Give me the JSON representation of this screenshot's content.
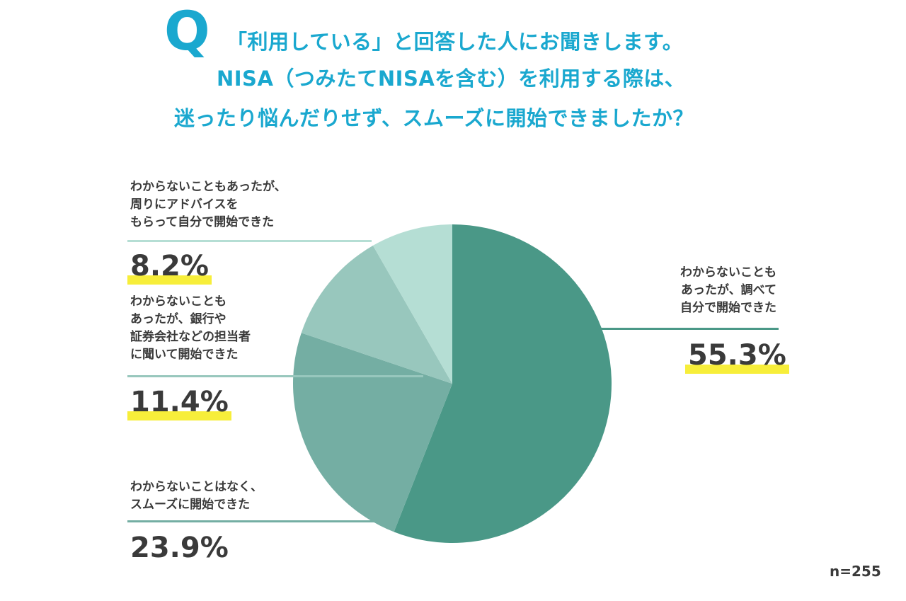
{
  "title": {
    "mark": "Q",
    "lines": [
      "「利用している」と回答した人にお聞きします。",
      "NISA（つみたてNISAを含む）を利用する際は、",
      "迷ったり悩んだりせず、スムーズに開始できましたか？"
    ]
  },
  "sample_size": "n=255",
  "colors": {
    "title": "#1aa8cf",
    "highlight": "#f7ee3a",
    "slices": [
      "#4a9887",
      "#74aea3",
      "#98c7bd",
      "#b5ded4"
    ]
  },
  "chart_data": {
    "type": "pie",
    "start_angle_deg": 0,
    "direction": "clockwise",
    "slices": [
      {
        "label_lines": [
          "わからないことも",
          "あったが、調べて",
          "自分で開始できた"
        ],
        "value": 55.3,
        "value_label": "55.3%",
        "highlighted": true
      },
      {
        "label_lines": [
          "わからないことはなく、",
          "スムーズに開始できた"
        ],
        "value": 23.9,
        "value_label": "23.9%",
        "highlighted": false
      },
      {
        "label_lines": [
          "わからないことも",
          "あったが、銀行や",
          "証券会社などの担当者",
          "に聞いて開始できた"
        ],
        "value": 11.4,
        "value_label": "11.4%",
        "highlighted": true
      },
      {
        "label_lines": [
          "わからないこともあったが、",
          "周りにアドバイスを",
          "もらって自分で開始できた"
        ],
        "value": 8.2,
        "value_label": "8.2%",
        "highlighted": true
      }
    ]
  }
}
